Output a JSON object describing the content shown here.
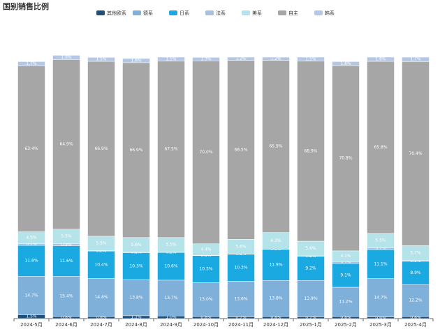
{
  "chart_data": {
    "type": "stacked-bar",
    "title": "国别销售比例",
    "categories": [
      "2024-5月",
      "2024-6月",
      "2024-7月",
      "2024-8月",
      "2024-9月",
      "2024-10月",
      "2024-11月",
      "2024-12月",
      "2025-1月",
      "2025-2月",
      "2025-3月",
      "2025-4月"
    ],
    "ylim": [
      0,
      100
    ],
    "series": [
      {
        "name": "其他欧系",
        "color": "#1f4e79",
        "values": [
          1.5,
          0.8,
          0.8,
          1.1,
          1.0,
          0.8,
          0.7,
          0.8,
          0.7,
          0.8,
          0.6,
          0.8
        ],
        "value_labels": [
          "1.5%",
          "0.8%",
          "0.8%",
          "1.1%",
          "1.0%",
          "0.8%",
          "0.7%",
          "0.8%",
          "0.7%",
          "0.8%",
          "0.6%",
          "0.8%"
        ]
      },
      {
        "name": "德系",
        "color": "#7fb0d9",
        "values": [
          14.7,
          15.4,
          14.6,
          13.8,
          13.7,
          13.0,
          13.6,
          13.8,
          13.9,
          11.2,
          14.7,
          12.2
        ],
        "value_labels": [
          "14.7%",
          "15.4%",
          "14.6%",
          "13.8%",
          "13.7%",
          "13.0%",
          "13.6%",
          "13.8%",
          "13.9%",
          "11.2%",
          "14.7%",
          "12.2%"
        ]
      },
      {
        "name": "日系",
        "color": "#1aa9e0",
        "values": [
          11.8,
          11.6,
          10.4,
          10.3,
          10.6,
          10.3,
          10.3,
          11.9,
          9.2,
          9.1,
          11.1,
          8.9
        ],
        "value_labels": [
          "11.8%",
          "11.6%",
          "10.4%",
          "10.3%",
          "10.6%",
          "10.3%",
          "10.3%",
          "11.9%",
          "9.2%",
          "9.1%",
          "11.1%",
          "8.9%"
        ]
      },
      {
        "name": "法系",
        "color": "#aac0e0",
        "values": [
          0.7,
          0.9,
          0.2,
          0.2,
          0.2,
          0.1,
          0.1,
          0.1,
          0.2,
          0.7,
          0.7,
          0.3
        ],
        "value_labels": [
          "0.7%",
          "0.9%",
          "0.2%",
          "0.2%",
          "0.2%",
          "0.1%",
          "0.1%",
          "0.1%",
          "0.2%",
          "0.7%",
          "0.7%",
          "0.3%"
        ]
      },
      {
        "name": "美系",
        "color": "#b5e3ea",
        "values": [
          4.5,
          5.5,
          5.5,
          5.6,
          5.5,
          4.4,
          5.6,
          6.3,
          5.6,
          4.1,
          5.5,
          5.7
        ],
        "value_labels": [
          "4.5%",
          "5.5%",
          "5.5%",
          "5.6%",
          "5.5%",
          "4.4%",
          "5.6%",
          "6.3%",
          "5.6%",
          "4.1%",
          "5.5%",
          "5.7%"
        ]
      },
      {
        "name": "自主",
        "color": "#a6a6a6",
        "values": [
          63.4,
          64.9,
          66.9,
          66.9,
          67.5,
          70.0,
          68.5,
          65.9,
          68.9,
          70.8,
          65.8,
          70.4
        ],
        "value_labels": [
          "63.4%",
          "64.9%",
          "66.9%",
          "66.9%",
          "67.5%",
          "70.0%",
          "68.5%",
          "65.9%",
          "68.9%",
          "70.8%",
          "65.8%",
          "70.4%"
        ]
      },
      {
        "name": "韩系",
        "color": "#b4c8e6",
        "values": [
          1.7,
          1.6,
          1.5,
          1.6,
          1.5,
          1.3,
          1.2,
          1.2,
          1.5,
          1.6,
          1.6,
          1.7
        ],
        "value_labels": [
          "1.7%",
          "1.6%",
          "1.5%",
          "1.6%",
          "1.5%",
          "1.3%",
          "1.2%",
          "1.2%",
          "1.5%",
          "1.6%",
          "1.6%",
          "1.7%"
        ]
      }
    ]
  }
}
